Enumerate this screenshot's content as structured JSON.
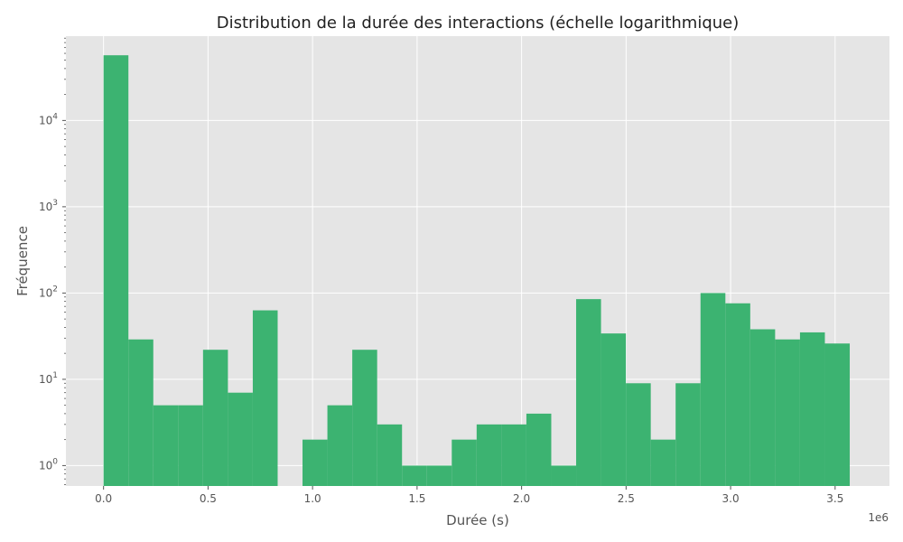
{
  "chart_data": {
    "type": "bar",
    "title": "Distribution de la durée des interactions (échelle logarithmique)",
    "xlabel": "Durée (s)",
    "ylabel": "Fréquence",
    "x_offset_label": "1e6",
    "x_scale_factor": 1000000,
    "yscale": "log",
    "xlim": [
      -0.18,
      3.76
    ],
    "ylim": [
      0.58,
      95000
    ],
    "bin_start": 0.0,
    "bin_width": 0.119,
    "values": [
      57000,
      29,
      5,
      5,
      22,
      7,
      63,
      0,
      2,
      5,
      22,
      3,
      1,
      1,
      2,
      3,
      3,
      4,
      1,
      85,
      34,
      9,
      2,
      9,
      100,
      76,
      38,
      29,
      35,
      26
    ],
    "x_ticks": [
      0.0,
      0.5,
      1.0,
      1.5,
      2.0,
      2.5,
      3.0,
      3.5
    ],
    "x_tick_labels": [
      "0.0",
      "0.5",
      "1.0",
      "1.5",
      "2.0",
      "2.5",
      "3.0",
      "3.5"
    ],
    "y_ticks": [
      1,
      10,
      100,
      1000,
      10000
    ],
    "y_tick_labels": [
      "10",
      "10",
      "10",
      "10",
      "10"
    ],
    "y_tick_exponents": [
      "0",
      "1",
      "2",
      "3",
      "4"
    ],
    "bar_color": "#3cb371",
    "plot_background": "#e5e5e5",
    "grid_color": "#ffffff",
    "grid": true,
    "legend": "none"
  }
}
